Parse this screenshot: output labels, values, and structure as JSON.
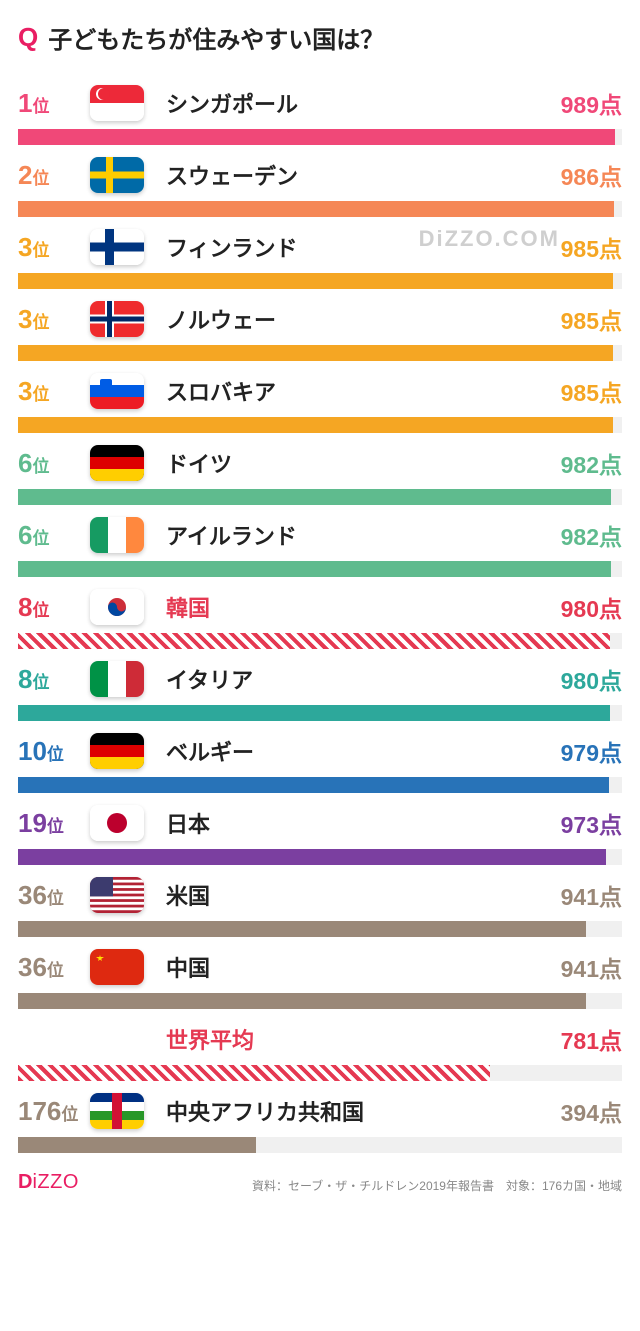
{
  "title": "子どもたちが住みやすい国は？",
  "q_label": "Q",
  "rank_suffix": "位",
  "score_suffix": "点",
  "watermark": "DiZZO.COM",
  "max_score": 1000,
  "track_color": "#f0f0f0",
  "rows": [
    {
      "rank": "1",
      "name": "シンガポール",
      "score": 989,
      "color": "#f04878",
      "flag": "sg",
      "style": "solid"
    },
    {
      "rank": "2",
      "name": "スウェーデン",
      "score": 986,
      "color": "#f58756",
      "flag": "se",
      "style": "solid"
    },
    {
      "rank": "3",
      "name": "フィンランド",
      "score": 985,
      "color": "#f5a623",
      "flag": "fi",
      "style": "solid"
    },
    {
      "rank": "3",
      "name": "ノルウェー",
      "score": 985,
      "color": "#f5a623",
      "flag": "no",
      "style": "solid"
    },
    {
      "rank": "3",
      "name": "スロバキア",
      "score": 985,
      "color": "#f5a623",
      "flag": "si",
      "style": "solid"
    },
    {
      "rank": "6",
      "name": "ドイツ",
      "score": 982,
      "color": "#5fbb8e",
      "flag": "de",
      "style": "solid"
    },
    {
      "rank": "6",
      "name": "アイルランド",
      "score": 982,
      "color": "#5fbb8e",
      "flag": "ie",
      "style": "solid"
    },
    {
      "rank": "8",
      "name": "韓国",
      "score": 980,
      "color": "#e53952",
      "flag": "kr",
      "style": "hatched",
      "highlight": true
    },
    {
      "rank": "8",
      "name": "イタリア",
      "score": 980,
      "color": "#2da89b",
      "flag": "it",
      "style": "solid"
    },
    {
      "rank": "10",
      "name": "ベルギー",
      "score": 979,
      "color": "#2873b8",
      "flag": "de",
      "style": "solid"
    },
    {
      "rank": "19",
      "name": "日本",
      "score": 973,
      "color": "#7b3fa0",
      "flag": "jp",
      "style": "solid"
    },
    {
      "rank": "36",
      "name": "米国",
      "score": 941,
      "color": "#9a8878",
      "flag": "us",
      "style": "solid"
    },
    {
      "rank": "36",
      "name": "中国",
      "score": 941,
      "color": "#9a8878",
      "flag": "cn",
      "style": "solid"
    },
    {
      "rank": "",
      "name": "世界平均",
      "score": 781,
      "color": "#e53952",
      "flag": "",
      "style": "hatched",
      "highlight": true
    },
    {
      "rank": "176",
      "name": "中央アフリカ共和国",
      "score": 394,
      "color": "#9a8878",
      "flag": "cf",
      "style": "solid"
    }
  ],
  "flags": {
    "sg": {
      "bg": "#fff",
      "svg": "<rect width='54' height='18' fill='#ed2939'/><rect y='18' width='54' height='18' fill='#fff'/><circle cx='12' cy='9' r='6' fill='#fff'/><circle cx='14' cy='9' r='6' fill='#ed2939'/>"
    },
    "se": {
      "bg": "#006aa7",
      "svg": "<rect x='16' width='7' height='36' fill='#fecc00'/><rect y='14.5' width='54' height='7' fill='#fecc00'/>"
    },
    "fi": {
      "bg": "#fff",
      "svg": "<rect x='15' width='9' height='36' fill='#003580'/><rect y='13.5' width='54' height='9' fill='#003580'/>"
    },
    "no": {
      "bg": "#ef2b2d",
      "svg": "<rect x='15' width='9' height='36' fill='#fff'/><rect y='13.5' width='54' height='9' fill='#fff'/><rect x='17' width='5' height='36' fill='#002868'/><rect y='15.5' width='54' height='5' fill='#002868'/>"
    },
    "si": {
      "bg": "#fff",
      "svg": "<rect y='12' width='54' height='12' fill='#005ce5'/><rect y='24' width='54' height='12' fill='#ed1c24'/><rect x='10' y='6' width='12' height='12' fill='#005ce5' rx='2'/>"
    },
    "de": {
      "bg": "#000",
      "svg": "<rect y='12' width='54' height='12' fill='#dd0000'/><rect y='24' width='54' height='12' fill='#ffce00'/>"
    },
    "ie": {
      "bg": "#fff",
      "svg": "<rect width='18' height='36' fill='#169b62'/><rect x='36' width='18' height='36' fill='#ff883e'/>"
    },
    "kr": {
      "bg": "#fff",
      "svg": "<circle cx='27' cy='18' r='9' fill='#cd2e3a'/><path d='M18,18 a9,9 0 0,0 18,0 a4.5,4.5 0 0,1 -9,0 a4.5,4.5 0 0,0 -9,0' fill='#0047a0'/>"
    },
    "it": {
      "bg": "#fff",
      "svg": "<rect width='18' height='36' fill='#009246'/><rect x='36' width='18' height='36' fill='#ce2b37'/>"
    },
    "jp": {
      "bg": "#fff",
      "svg": "<circle cx='27' cy='18' r='10' fill='#bc002d'/>"
    },
    "us": {
      "bg": "#fff",
      "svg": "<rect width='54' height='36' fill='#b22234'/><rect y='2.77' width='54' height='2.77' fill='#fff'/><rect y='8.31' width='54' height='2.77' fill='#fff'/><rect y='13.85' width='54' height='2.77' fill='#fff'/><rect y='19.38' width='54' height='2.77' fill='#fff'/><rect y='24.92' width='54' height='2.77' fill='#fff'/><rect y='30.46' width='54' height='2.77' fill='#fff'/><rect width='23' height='19.38' fill='#3c3b6e'/>"
    },
    "cn": {
      "bg": "#de2910",
      "svg": "<polygon points='10,6 12,12 6,8 14,8 8,12' fill='#ffde00'/>"
    },
    "cf": {
      "bg": "#fff",
      "svg": "<rect width='54' height='9' fill='#003082'/><rect y='9' width='54' height='9' fill='#fff'/><rect y='18' width='54' height='9' fill='#289728'/><rect y='27' width='54' height='9' fill='#ffce00'/><rect x='22' width='10' height='36' fill='#d21034'/>"
    }
  },
  "logo": {
    "d": "D",
    "rest": "iZZO"
  },
  "credit": "資料：セーブ・ザ・チルドレン2019年報告書　対象：176カ国・地域"
}
